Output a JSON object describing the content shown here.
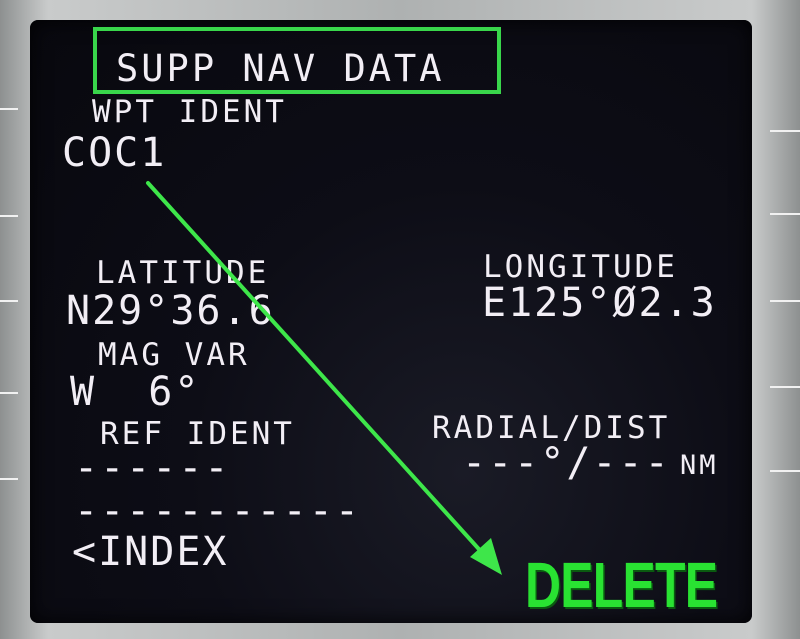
{
  "page": {
    "title": "SUPP NAV DATA",
    "wpt_ident_label": "WPT IDENT",
    "wpt_ident_value": "COC1",
    "latitude_label": "LATITUDE",
    "latitude_value": "N29°36.6",
    "longitude_label": "LONGITUDE",
    "longitude_value": "E125°Ø2.3",
    "mag_var_label": "MAG VAR",
    "mag_var_value": "W  6°",
    "ref_ident_label": "REF IDENT",
    "ref_ident_value": "------",
    "radial_dist_label": "RADIAL/DIST",
    "radial_dist_value": "---°/---",
    "radial_dist_unit": "NM",
    "scratchpad": "-----------",
    "index_prompt": "<INDEX"
  },
  "annotation": {
    "label": "DELETE",
    "color": "#29e232",
    "box_color": "#39d64b",
    "arrow_color": "#3ee64a"
  }
}
